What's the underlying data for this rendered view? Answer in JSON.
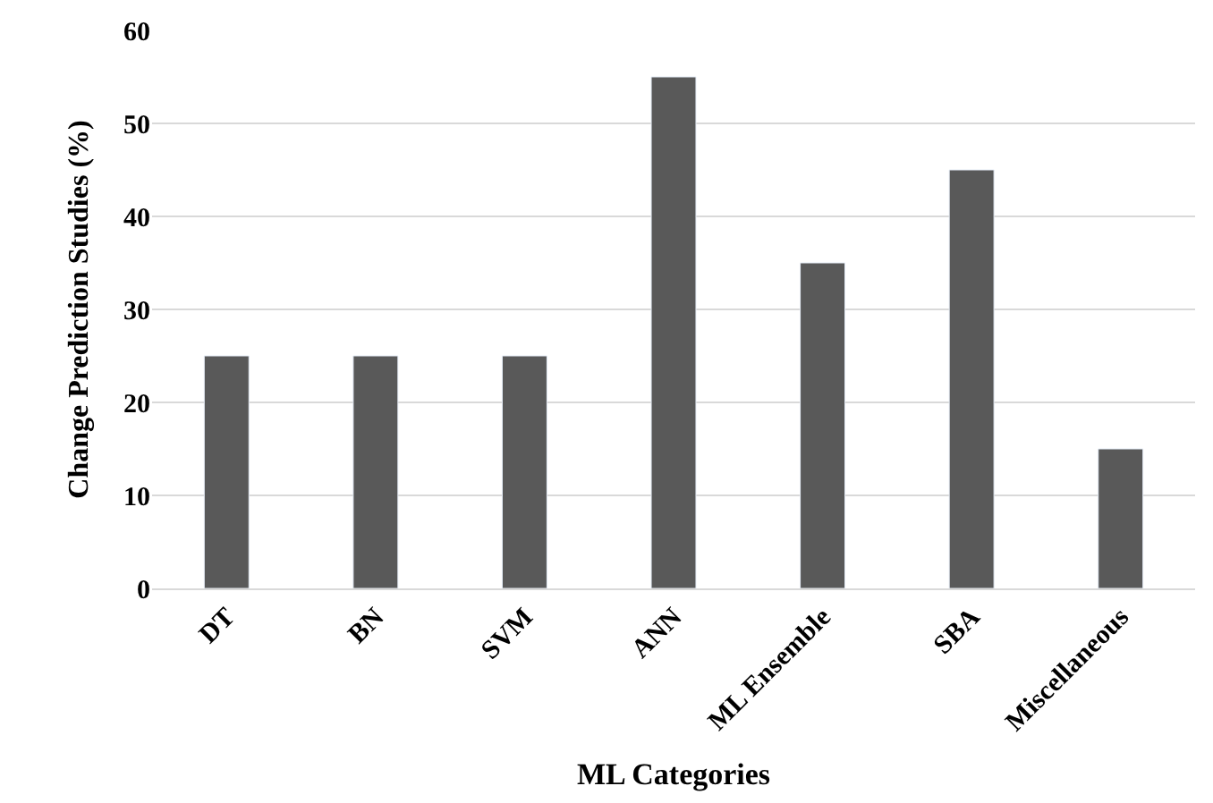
{
  "chart_data": {
    "type": "bar",
    "xlabel": "ML Categories",
    "ylabel": "Change Prediction Studies (%)",
    "categories": [
      "DT",
      "BN",
      "SVM",
      "ANN",
      "ML Ensemble",
      "SBA",
      "Miscellaneous"
    ],
    "values": [
      25,
      25,
      25,
      55,
      35,
      45,
      15
    ],
    "color": "#595959",
    "ylim": [
      0,
      60
    ],
    "yticks": [
      0,
      10,
      20,
      30,
      40,
      50,
      60
    ],
    "grid": "y"
  }
}
